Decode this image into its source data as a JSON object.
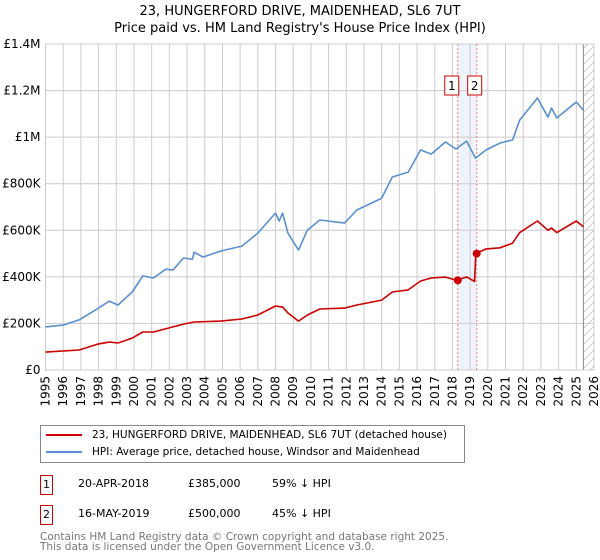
{
  "title_line1": "23, HUNGERFORD DRIVE, MAIDENHEAD, SL6 7UT",
  "title_line2": "Price paid vs. HM Land Registry's House Price Index (HPI)",
  "chart_data": {
    "type": "line",
    "title": "23, HUNGERFORD DRIVE, MAIDENHEAD, SL6 7UT - Price paid vs. HM Land Registry's House Price Index (HPI)",
    "xlabel": "",
    "ylabel": "",
    "xlim": [
      1995,
      2026
    ],
    "ylim": [
      0,
      1400000
    ],
    "grid": true,
    "x_ticks": [
      1995,
      1996,
      1997,
      1998,
      1999,
      2000,
      2001,
      2002,
      2003,
      2004,
      2005,
      2006,
      2007,
      2008,
      2009,
      2010,
      2011,
      2012,
      2013,
      2014,
      2015,
      2016,
      2017,
      2018,
      2019,
      2020,
      2021,
      2022,
      2023,
      2024,
      2025,
      2026
    ],
    "y_ticks": [
      0,
      200000,
      400000,
      600000,
      800000,
      1000000,
      1200000,
      1400000
    ],
    "y_tick_labels": [
      "£0",
      "£200K",
      "£400K",
      "£600K",
      "£800K",
      "£1M",
      "£1.2M",
      "£1.4M"
    ],
    "forecast_hatch_from": 2025.4,
    "series": [
      {
        "name": "23, HUNGERFORD DRIVE, MAIDENHEAD, SL6 7UT (detached house)",
        "color": "#cc0000",
        "x": [
          1995.0,
          1996.9,
          1998.0,
          1998.6,
          1999.1,
          1999.9,
          2000.5,
          2001.1,
          2002.8,
          2003.4,
          2004.9,
          2006.1,
          2007.0,
          2008.0,
          2008.4,
          2008.7,
          2009.3,
          2009.8,
          2010.5,
          2011.9,
          2012.6,
          2014.0,
          2014.6,
          2015.5,
          2016.2,
          2016.8,
          2017.6,
          2018.25,
          2018.8,
          2019.25,
          2019.32,
          2019.9,
          2020.7,
          2021.4,
          2021.8,
          2022.8,
          2023.4,
          2023.6,
          2023.9,
          2025.0,
          2025.4
        ],
        "y": [
          77000,
          86000,
          112000,
          120000,
          116000,
          137000,
          163000,
          163000,
          197000,
          206000,
          210000,
          219000,
          236000,
          275000,
          270000,
          245000,
          210000,
          236000,
          262000,
          266000,
          279000,
          300000,
          335000,
          344000,
          382000,
          395000,
          399000,
          385000,
          400000,
          380000,
          500000,
          520000,
          525000,
          545000,
          590000,
          640000,
          600000,
          610000,
          590000,
          640000,
          615000
        ]
      },
      {
        "name": "HPI: Average price, detached house, Windsor and Maidenhead",
        "color": "#5b8fd0",
        "x": [
          1995.0,
          1996.0,
          1996.9,
          1998.0,
          1998.6,
          1999.1,
          1999.9,
          2000.5,
          2001.1,
          2001.8,
          2002.2,
          2002.8,
          2003.3,
          2003.4,
          2003.9,
          2004.9,
          2006.1,
          2007.0,
          2008.0,
          2008.2,
          2008.4,
          2008.7,
          2009.3,
          2009.8,
          2010.5,
          2011.9,
          2012.6,
          2014.0,
          2014.6,
          2015.5,
          2016.2,
          2016.8,
          2017.6,
          2018.2,
          2018.8,
          2019.3,
          2019.9,
          2020.7,
          2021.4,
          2021.8,
          2022.8,
          2023.4,
          2023.6,
          2023.9,
          2025.0,
          2025.4
        ],
        "y": [
          185000,
          193000,
          215000,
          266000,
          296000,
          279000,
          335000,
          404000,
          395000,
          433000,
          429000,
          481000,
          476000,
          506000,
          485000,
          511000,
          532000,
          588000,
          674000,
          640000,
          674000,
          588000,
          515000,
          601000,
          644000,
          631000,
          687000,
          738000,
          829000,
          850000,
          945000,
          927000,
          979000,
          949000,
          983000,
          910000,
          945000,
          975000,
          988000,
          1073000,
          1168000,
          1086000,
          1125000,
          1082000,
          1151000,
          1116000
        ]
      }
    ],
    "sales": [
      {
        "label": "1",
        "x": 2018.3,
        "y": 385000
      },
      {
        "label": "2",
        "x": 2019.37,
        "y": 500000
      }
    ]
  },
  "legend": {
    "property": "23, HUNGERFORD DRIVE, MAIDENHEAD, SL6 7UT (detached house)",
    "hpi": "HPI: Average price, detached house, Windsor and Maidenhead"
  },
  "transactions": [
    {
      "num": "1",
      "date": "20-APR-2018",
      "price": "£385,000",
      "delta": "59% ↓ HPI"
    },
    {
      "num": "2",
      "date": "16-MAY-2019",
      "price": "£500,000",
      "delta": "45% ↓ HPI"
    }
  ],
  "footer_line1": "Contains HM Land Registry data © Crown copyright and database right 2025.",
  "footer_line2": "This data is licensed under the Open Government Licence v3.0."
}
